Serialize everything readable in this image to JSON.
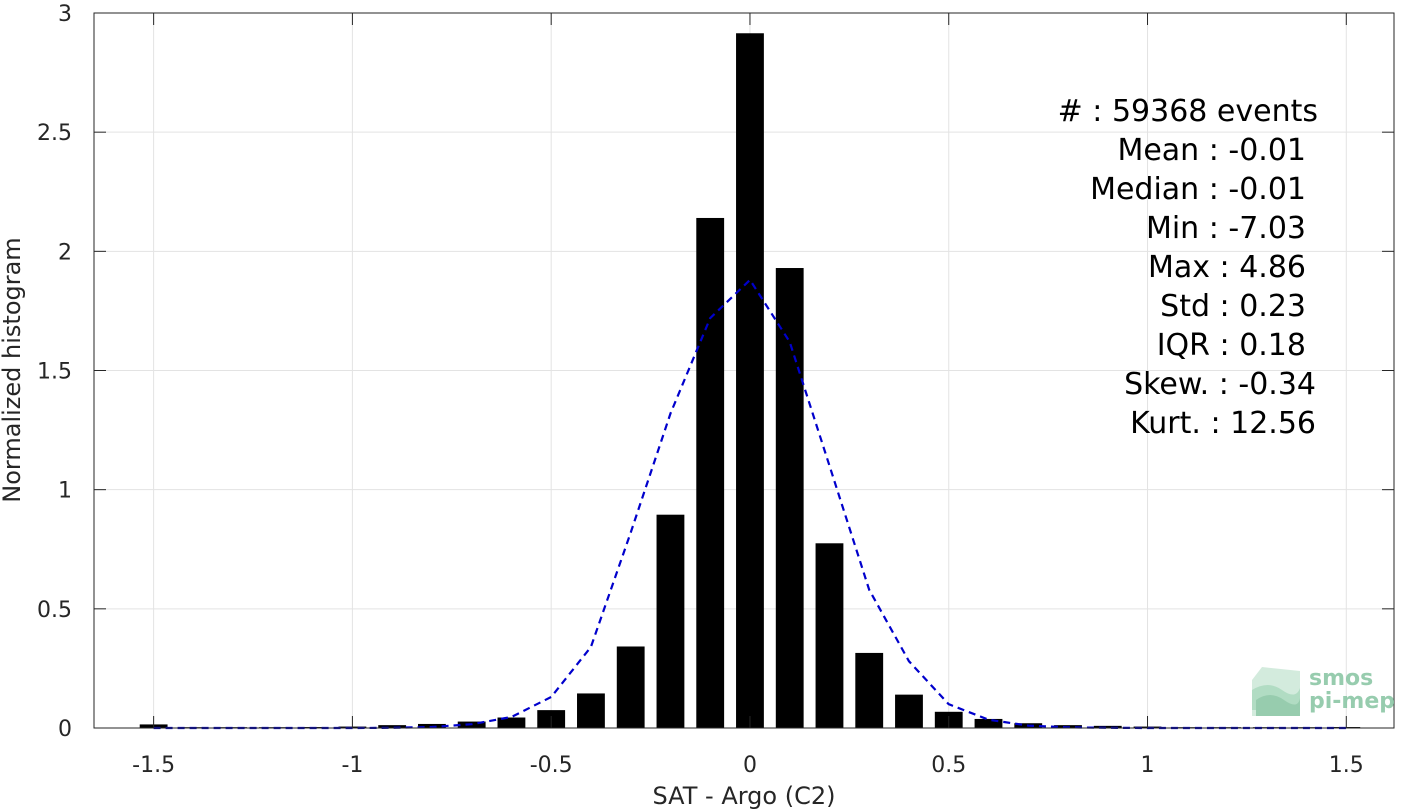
{
  "chart_data": {
    "type": "bar",
    "xlabel": "SAT - Argo (C2)",
    "ylabel": "Normalized histogram",
    "xlim": [
      -1.65,
      1.62
    ],
    "ylim": [
      0,
      3
    ],
    "xticks": [
      -1.5,
      -1,
      -0.5,
      0,
      0.5,
      1,
      1.5
    ],
    "xtick_labels": [
      "-1.5",
      "-1",
      "-0.5",
      "0",
      "0.5",
      "1",
      "1.5"
    ],
    "yticks": [
      0,
      0.5,
      1,
      1.5,
      2,
      2.5,
      3
    ],
    "ytick_labels": [
      "0",
      "0.5",
      "1",
      "1.5",
      "2",
      "2.5",
      "3"
    ],
    "grid": true,
    "bar_color": "#000000",
    "bar_width": 0.07,
    "x": [
      -1.5,
      -1.4,
      -1.3,
      -1.2,
      -1.1,
      -1.0,
      -0.9,
      -0.8,
      -0.7,
      -0.6,
      -0.5,
      -0.4,
      -0.3,
      -0.2,
      -0.1,
      0.0,
      0.1,
      0.2,
      0.3,
      0.4,
      0.5,
      0.6,
      0.7,
      0.8,
      0.9,
      1.0,
      1.1,
      1.2,
      1.3,
      1.4,
      1.5
    ],
    "values": [
      0.015,
      0.001,
      0.001,
      0.001,
      0.004,
      0.006,
      0.012,
      0.017,
      0.027,
      0.044,
      0.075,
      0.145,
      0.342,
      0.895,
      2.14,
      2.915,
      1.93,
      0.775,
      0.315,
      0.14,
      0.068,
      0.038,
      0.02,
      0.012,
      0.009,
      0.006,
      0.003,
      0.001,
      0.001,
      0.001,
      0.004
    ],
    "fit": {
      "name": "normal fit",
      "color": "#0000cc",
      "style": "dashed",
      "x": [
        -1.5,
        -1.4,
        -1.3,
        -1.2,
        -1.1,
        -1.0,
        -0.9,
        -0.8,
        -0.7,
        -0.6,
        -0.5,
        -0.4,
        -0.3,
        -0.2,
        -0.1,
        0.0,
        0.1,
        0.2,
        0.3,
        0.4,
        0.5,
        0.6,
        0.7,
        0.8,
        0.9,
        1.0,
        1.1,
        1.2,
        1.3,
        1.4,
        1.5
      ],
      "values": [
        0.0,
        0.0,
        0.0,
        0.0,
        0.0,
        0.0,
        0.001,
        0.004,
        0.016,
        0.046,
        0.13,
        0.34,
        0.82,
        1.32,
        1.72,
        1.88,
        1.62,
        1.1,
        0.58,
        0.28,
        0.1,
        0.035,
        0.01,
        0.003,
        0.001,
        0.0,
        0.0,
        0.0,
        0.0,
        0.0,
        0.0
      ]
    }
  },
  "stats": [
    {
      "label": "#  : 59368 events"
    },
    {
      "label": "Mean : -0.01"
    },
    {
      "label": "Median : -0.01"
    },
    {
      "label": "Min : -7.03"
    },
    {
      "label": "Max : 4.86"
    },
    {
      "label": "Std : 0.23"
    },
    {
      "label": "IQR : 0.18"
    },
    {
      "label": "Skew. : -0.34"
    },
    {
      "label": "Kurt. : 12.56"
    }
  ],
  "logo": {
    "line1": "smos",
    "line2": "pi-mep",
    "color": "#8cc7a6"
  }
}
